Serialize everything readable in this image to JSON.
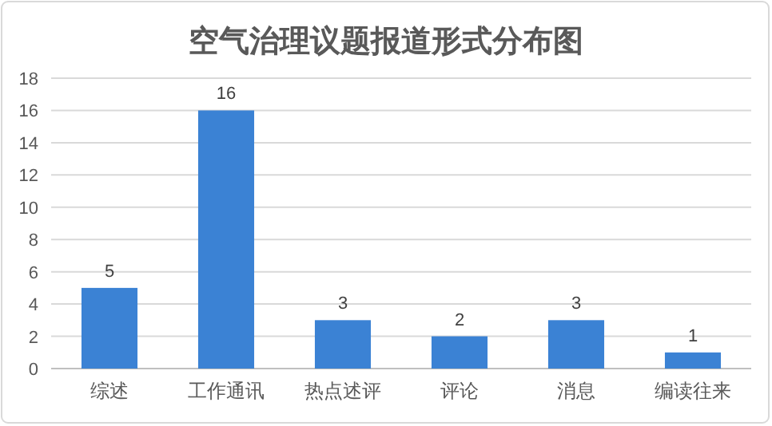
{
  "chart_data": {
    "type": "bar",
    "title": "空气治理议题报道形式分布图",
    "categories": [
      "综述",
      "工作通讯",
      "热点述评",
      "评论",
      "消息",
      "编读往来"
    ],
    "values": [
      5,
      16,
      3,
      2,
      3,
      1
    ],
    "color": "#3b82d4",
    "ylim": [
      0,
      18
    ],
    "yticks": [
      0,
      2,
      4,
      6,
      8,
      10,
      12,
      14,
      16,
      18
    ],
    "grid": "y",
    "data_labels": true
  }
}
